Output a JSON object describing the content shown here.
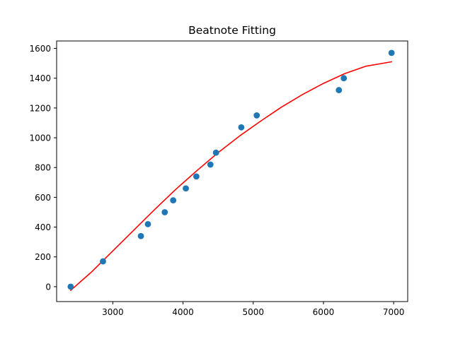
{
  "chart_data": {
    "type": "scatter",
    "title": "Beatnote Fitting",
    "xlabel": "",
    "ylabel": "",
    "xlim": [
      2200,
      7200
    ],
    "ylim": [
      -100,
      1650
    ],
    "xticks": [
      3000,
      4000,
      5000,
      6000,
      7000
    ],
    "yticks": [
      0,
      200,
      400,
      600,
      800,
      1000,
      1200,
      1400,
      1600
    ],
    "grid": false,
    "legend": "none",
    "series": [
      {
        "kind": "scatter",
        "color": "#1f77b4",
        "x": [
          2400,
          2860,
          3400,
          3500,
          3740,
          3860,
          4040,
          4190,
          4390,
          4470,
          4830,
          5050,
          6220,
          6290,
          6970
        ],
        "y": [
          0,
          170,
          340,
          420,
          500,
          580,
          660,
          740,
          820,
          900,
          1070,
          1150,
          1320,
          1400,
          1570
        ]
      },
      {
        "kind": "line",
        "color": "#ff0000",
        "x": [
          2400,
          2700,
          3000,
          3300,
          3600,
          3900,
          4200,
          4500,
          4800,
          5100,
          5400,
          5700,
          6000,
          6300,
          6600,
          6970
        ],
        "y": [
          -25,
          100,
          240,
          380,
          520,
          655,
          780,
          900,
          1010,
          1110,
          1205,
          1290,
          1365,
          1430,
          1480,
          1510
        ]
      }
    ]
  }
}
